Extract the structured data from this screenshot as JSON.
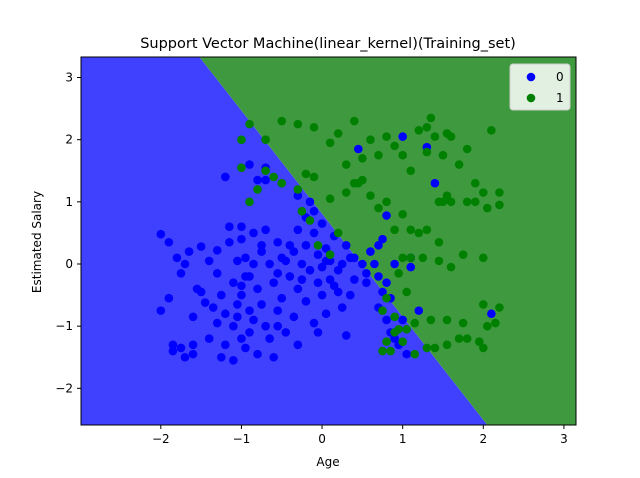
{
  "chart_data": {
    "type": "scatter",
    "title": "Support Vector Machine(linear_kernel)(Training_set)",
    "xlabel": "Age",
    "ylabel": "Estimated Salary",
    "xlim": [
      -2.99,
      3.15
    ],
    "ylim": [
      -2.59,
      3.33
    ],
    "xticks": [
      -2,
      -1,
      0,
      1,
      2,
      3
    ],
    "yticks": [
      -2,
      -1,
      0,
      1,
      2,
      3
    ],
    "tick_labels_x": [
      "−2",
      "−1",
      "0",
      "1",
      "2",
      "3"
    ],
    "tick_labels_y": [
      "−2",
      "−1",
      "0",
      "1",
      "2",
      "3"
    ],
    "legend_position": "top-right",
    "grid": false,
    "regions": [
      {
        "class": "0",
        "color": "#4040ff"
      },
      {
        "class": "1",
        "color": "#3f9a3f"
      }
    ],
    "decision_boundary": {
      "x0": -1.52,
      "y0": 3.33,
      "x1": 2.05,
      "y1": -2.59
    },
    "series": [
      {
        "name": "0",
        "color": "#0000ff",
        "points": [
          [
            -2.0,
            0.48
          ],
          [
            -1.9,
            0.35
          ],
          [
            -1.9,
            -0.55
          ],
          [
            -2.0,
            -0.75
          ],
          [
            -1.85,
            -1.3
          ],
          [
            -1.85,
            -1.4
          ],
          [
            -1.8,
            0.1
          ],
          [
            -1.75,
            -1.35
          ],
          [
            -1.7,
            0.0
          ],
          [
            -1.7,
            -1.5
          ],
          [
            -1.6,
            -0.85
          ],
          [
            -1.6,
            -1.3
          ],
          [
            -1.6,
            -1.45
          ],
          [
            -1.5,
            0.28
          ],
          [
            -1.5,
            -0.45
          ],
          [
            -1.45,
            -0.62
          ],
          [
            -1.4,
            0.05
          ],
          [
            -1.4,
            -1.2
          ],
          [
            -1.3,
            0.22
          ],
          [
            -1.3,
            -0.15
          ],
          [
            -1.25,
            -0.5
          ],
          [
            -1.2,
            -0.8
          ],
          [
            -1.2,
            -1.3
          ],
          [
            -1.15,
            0.6
          ],
          [
            -1.15,
            0.35
          ],
          [
            -1.1,
            -0.3
          ],
          [
            -1.1,
            -1.0
          ],
          [
            -1.1,
            -1.55
          ],
          [
            -1.05,
            0.05
          ],
          [
            -1.05,
            -0.65
          ],
          [
            -1.0,
            0.6
          ],
          [
            -1.0,
            0.4
          ],
          [
            -1.0,
            -0.35
          ],
          [
            -1.0,
            -0.5
          ],
          [
            -1.0,
            -1.2
          ],
          [
            -0.95,
            0.1
          ],
          [
            -0.95,
            -1.35
          ],
          [
            -0.9,
            -0.75
          ],
          [
            -0.9,
            -1.1
          ],
          [
            -0.9,
            1.6
          ],
          [
            -0.9,
            -0.2
          ],
          [
            -0.85,
            0.5
          ],
          [
            -0.85,
            0.0
          ],
          [
            -0.8,
            -0.4
          ],
          [
            -0.8,
            -1.45
          ],
          [
            -0.75,
            0.2
          ],
          [
            -0.75,
            0.3
          ],
          [
            -0.75,
            -0.65
          ],
          [
            -0.7,
            1.35
          ],
          [
            -0.7,
            1.55
          ],
          [
            -0.7,
            0.55
          ],
          [
            -0.7,
            -1.0
          ],
          [
            -0.65,
            0.0
          ],
          [
            -0.6,
            -0.3
          ],
          [
            -0.6,
            -1.5
          ],
          [
            -0.55,
            -0.75
          ],
          [
            -0.55,
            0.35
          ],
          [
            -0.5,
            0.1
          ],
          [
            -0.5,
            -0.55
          ],
          [
            -0.45,
            -1.1
          ],
          [
            -0.4,
            0.3
          ],
          [
            -0.4,
            -0.2
          ],
          [
            -0.35,
            -0.85
          ],
          [
            -0.3,
            1.1
          ],
          [
            -0.3,
            0.55
          ],
          [
            -0.3,
            -0.4
          ],
          [
            -0.3,
            -1.3
          ],
          [
            -0.25,
            0.0
          ],
          [
            -0.2,
            -0.6
          ],
          [
            -0.2,
            0.75
          ],
          [
            -0.15,
            -0.1
          ],
          [
            -0.1,
            0.5
          ],
          [
            -0.1,
            -0.95
          ],
          [
            -0.05,
            0.15
          ],
          [
            -0.05,
            -0.3
          ],
          [
            0.0,
            0.65
          ],
          [
            0.0,
            -0.5
          ],
          [
            0.05,
            0.25
          ],
          [
            0.05,
            -0.8
          ],
          [
            0.1,
            0.05
          ],
          [
            0.1,
            -0.25
          ],
          [
            0.15,
            0.45
          ],
          [
            0.2,
            -0.45
          ],
          [
            0.25,
            0.0
          ],
          [
            0.25,
            -0.7
          ],
          [
            0.3,
            0.3
          ],
          [
            0.3,
            -1.15
          ],
          [
            0.35,
            0.1
          ],
          [
            0.35,
            -0.5
          ],
          [
            0.4,
            0.1
          ],
          [
            0.4,
            -0.25
          ],
          [
            0.45,
            1.85
          ],
          [
            -0.8,
            1.35
          ],
          [
            -1.2,
            1.4
          ],
          [
            1.0,
            2.05
          ],
          [
            0.8,
            0.78
          ],
          [
            1.3,
            1.88
          ],
          [
            1.4,
            1.3
          ],
          [
            0.7,
            0.3
          ],
          [
            0.85,
            -0.55
          ],
          [
            0.8,
            -0.3
          ],
          [
            0.75,
            0.4
          ],
          [
            0.7,
            -0.7
          ],
          [
            1.2,
            -0.75
          ],
          [
            2.1,
            -0.8
          ],
          [
            0.9,
            0.0
          ],
          [
            1.1,
            -0.05
          ],
          [
            -0.05,
            -1.1
          ],
          [
            -0.55,
            -1.0
          ],
          [
            -1.3,
            -0.95
          ],
          [
            0.0,
            -0.05
          ],
          [
            0.15,
            -0.35
          ],
          [
            0.55,
            -0.3
          ],
          [
            0.5,
            0.0
          ],
          [
            0.55,
            -0.15
          ],
          [
            0.6,
            0.2
          ],
          [
            0.65,
            0.0
          ],
          [
            0.7,
            -0.2
          ],
          [
            0.75,
            -0.45
          ],
          [
            0.8,
            -0.9
          ],
          [
            0.85,
            -1.1
          ],
          [
            0.9,
            -1.2
          ],
          [
            0.95,
            -1.3
          ],
          [
            1.0,
            -0.9
          ],
          [
            1.05,
            -1.45
          ],
          [
            1.1,
            0.1
          ],
          [
            -1.75,
            -0.15
          ],
          [
            -1.65,
            0.2
          ],
          [
            -1.55,
            -0.4
          ],
          [
            -1.35,
            -0.7
          ],
          [
            -1.25,
            -1.5
          ],
          [
            -1.05,
            -0.85
          ],
          [
            -0.95,
            -0.2
          ],
          [
            -0.85,
            -0.9
          ],
          [
            -0.65,
            -1.2
          ],
          [
            -0.55,
            -0.15
          ],
          [
            -0.45,
            0.05
          ],
          [
            -0.35,
            0.2
          ],
          [
            -0.25,
            -0.25
          ],
          [
            -0.2,
            0.3
          ],
          [
            -0.15,
            1.0
          ],
          [
            -0.1,
            0.85
          ],
          [
            0.05,
            0.05
          ],
          [
            0.2,
            -0.1
          ]
        ]
      },
      {
        "name": "1",
        "color": "#008000",
        "points": [
          [
            -0.9,
            2.25
          ],
          [
            -0.7,
            2.0
          ],
          [
            -0.5,
            2.3
          ],
          [
            -0.3,
            2.25
          ],
          [
            -0.1,
            2.2
          ],
          [
            0.1,
            1.95
          ],
          [
            0.2,
            2.1
          ],
          [
            0.3,
            1.6
          ],
          [
            0.4,
            2.3
          ],
          [
            0.5,
            1.7
          ],
          [
            0.6,
            2.0
          ],
          [
            0.7,
            1.75
          ],
          [
            0.8,
            2.05
          ],
          [
            0.9,
            1.9
          ],
          [
            1.0,
            1.75
          ],
          [
            1.1,
            1.5
          ],
          [
            1.2,
            2.15
          ],
          [
            1.3,
            2.2
          ],
          [
            1.35,
            2.35
          ],
          [
            1.4,
            2.05
          ],
          [
            1.5,
            1.75
          ],
          [
            1.55,
            2.1
          ],
          [
            1.6,
            2.05
          ],
          [
            1.7,
            1.6
          ],
          [
            1.8,
            1.85
          ],
          [
            1.9,
            1.3
          ],
          [
            2.0,
            1.15
          ],
          [
            2.1,
            2.15
          ],
          [
            2.2,
            1.15
          ],
          [
            2.2,
            0.95
          ],
          [
            1.9,
            1.0
          ],
          [
            1.8,
            1.0
          ],
          [
            1.6,
            1.0
          ],
          [
            1.55,
            1.1
          ],
          [
            1.5,
            1.0
          ],
          [
            1.45,
            1.0
          ],
          [
            1.3,
            0.55
          ],
          [
            1.2,
            0.5
          ],
          [
            1.1,
            0.55
          ],
          [
            1.0,
            0.8
          ],
          [
            0.9,
            0.55
          ],
          [
            0.8,
            1.0
          ],
          [
            0.7,
            0.9
          ],
          [
            0.6,
            1.1
          ],
          [
            0.5,
            1.35
          ],
          [
            0.4,
            1.3
          ],
          [
            0.3,
            1.15
          ],
          [
            0.1,
            1.05
          ],
          [
            -0.1,
            1.4
          ],
          [
            -0.2,
            1.45
          ],
          [
            -0.3,
            1.2
          ],
          [
            -0.5,
            1.3
          ],
          [
            -0.6,
            1.4
          ],
          [
            -0.7,
            1.5
          ],
          [
            -0.8,
            1.2
          ],
          [
            -0.9,
            1.0
          ],
          [
            -1.0,
            2.0
          ],
          [
            -1.0,
            1.55
          ],
          [
            2.05,
            0.9
          ],
          [
            2.0,
            0.1
          ],
          [
            1.75,
            0.15
          ],
          [
            1.6,
            -0.05
          ],
          [
            1.45,
            0.05
          ],
          [
            1.45,
            0.35
          ],
          [
            1.25,
            0.1
          ],
          [
            1.1,
            0.1
          ],
          [
            1.0,
            0.1
          ],
          [
            0.95,
            -0.15
          ],
          [
            0.8,
            -0.55
          ],
          [
            0.75,
            -0.75
          ],
          [
            0.9,
            -0.85
          ],
          [
            0.95,
            -1.05
          ],
          [
            1.05,
            -1.05
          ],
          [
            1.15,
            -0.95
          ],
          [
            1.35,
            -0.9
          ],
          [
            1.55,
            -0.9
          ],
          [
            1.75,
            -0.95
          ],
          [
            2.0,
            -0.65
          ],
          [
            2.05,
            -1.0
          ],
          [
            2.2,
            -0.7
          ],
          [
            2.15,
            -0.95
          ],
          [
            2.0,
            -1.35
          ],
          [
            1.95,
            -1.25
          ],
          [
            1.8,
            -1.2
          ],
          [
            1.7,
            -1.2
          ],
          [
            1.55,
            -1.3
          ],
          [
            1.4,
            -1.35
          ],
          [
            1.3,
            -1.35
          ],
          [
            1.15,
            -1.45
          ],
          [
            1.0,
            -1.25
          ],
          [
            0.9,
            -1.1
          ],
          [
            0.85,
            -1.4
          ],
          [
            0.8,
            -1.25
          ],
          [
            0.75,
            -1.4
          ],
          [
            1.05,
            -0.45
          ],
          [
            -0.05,
            0.3
          ],
          [
            0.1,
            0.15
          ],
          [
            -0.25,
            0.85
          ],
          [
            -0.15,
            0.7
          ],
          [
            0.2,
            0.5
          ],
          [
            0.45,
            1.3
          ],
          [
            1.3,
            1.8
          ]
        ]
      }
    ]
  }
}
